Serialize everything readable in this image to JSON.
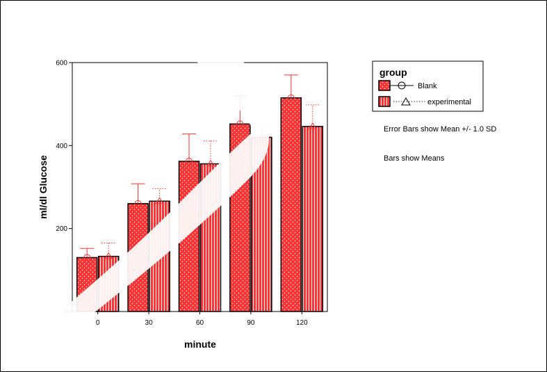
{
  "chart_data": {
    "type": "bar",
    "xlabel": "minute",
    "ylabel": "ml/dl Glucose",
    "ylim": [
      0,
      600
    ],
    "yticks": [
      "0",
      "200",
      "400",
      "600"
    ],
    "categories": [
      "0",
      "30",
      "60",
      "90",
      "120"
    ],
    "series": [
      {
        "name": "Blank",
        "values": [
          130,
          260,
          362,
          452,
          515
        ],
        "sd": [
          22,
          48,
          66,
          68,
          55
        ],
        "color": "#ff3333",
        "pattern": "dots",
        "marker": "circle",
        "errorStyle": "solid"
      },
      {
        "name": "experimental",
        "values": [
          133,
          266,
          356,
          420,
          446
        ],
        "sd": [
          32,
          30,
          55,
          28,
          52
        ],
        "color": "#ff3333",
        "pattern": "stripes",
        "marker": "triangle",
        "errorStyle": "dotted"
      }
    ],
    "legend": {
      "title": "group",
      "placement": "top-right"
    },
    "notes": [
      "Error Bars show Mean +/- 1.0 SD",
      "Bars show Means"
    ],
    "grid": false
  },
  "watermark_color": "#000000"
}
